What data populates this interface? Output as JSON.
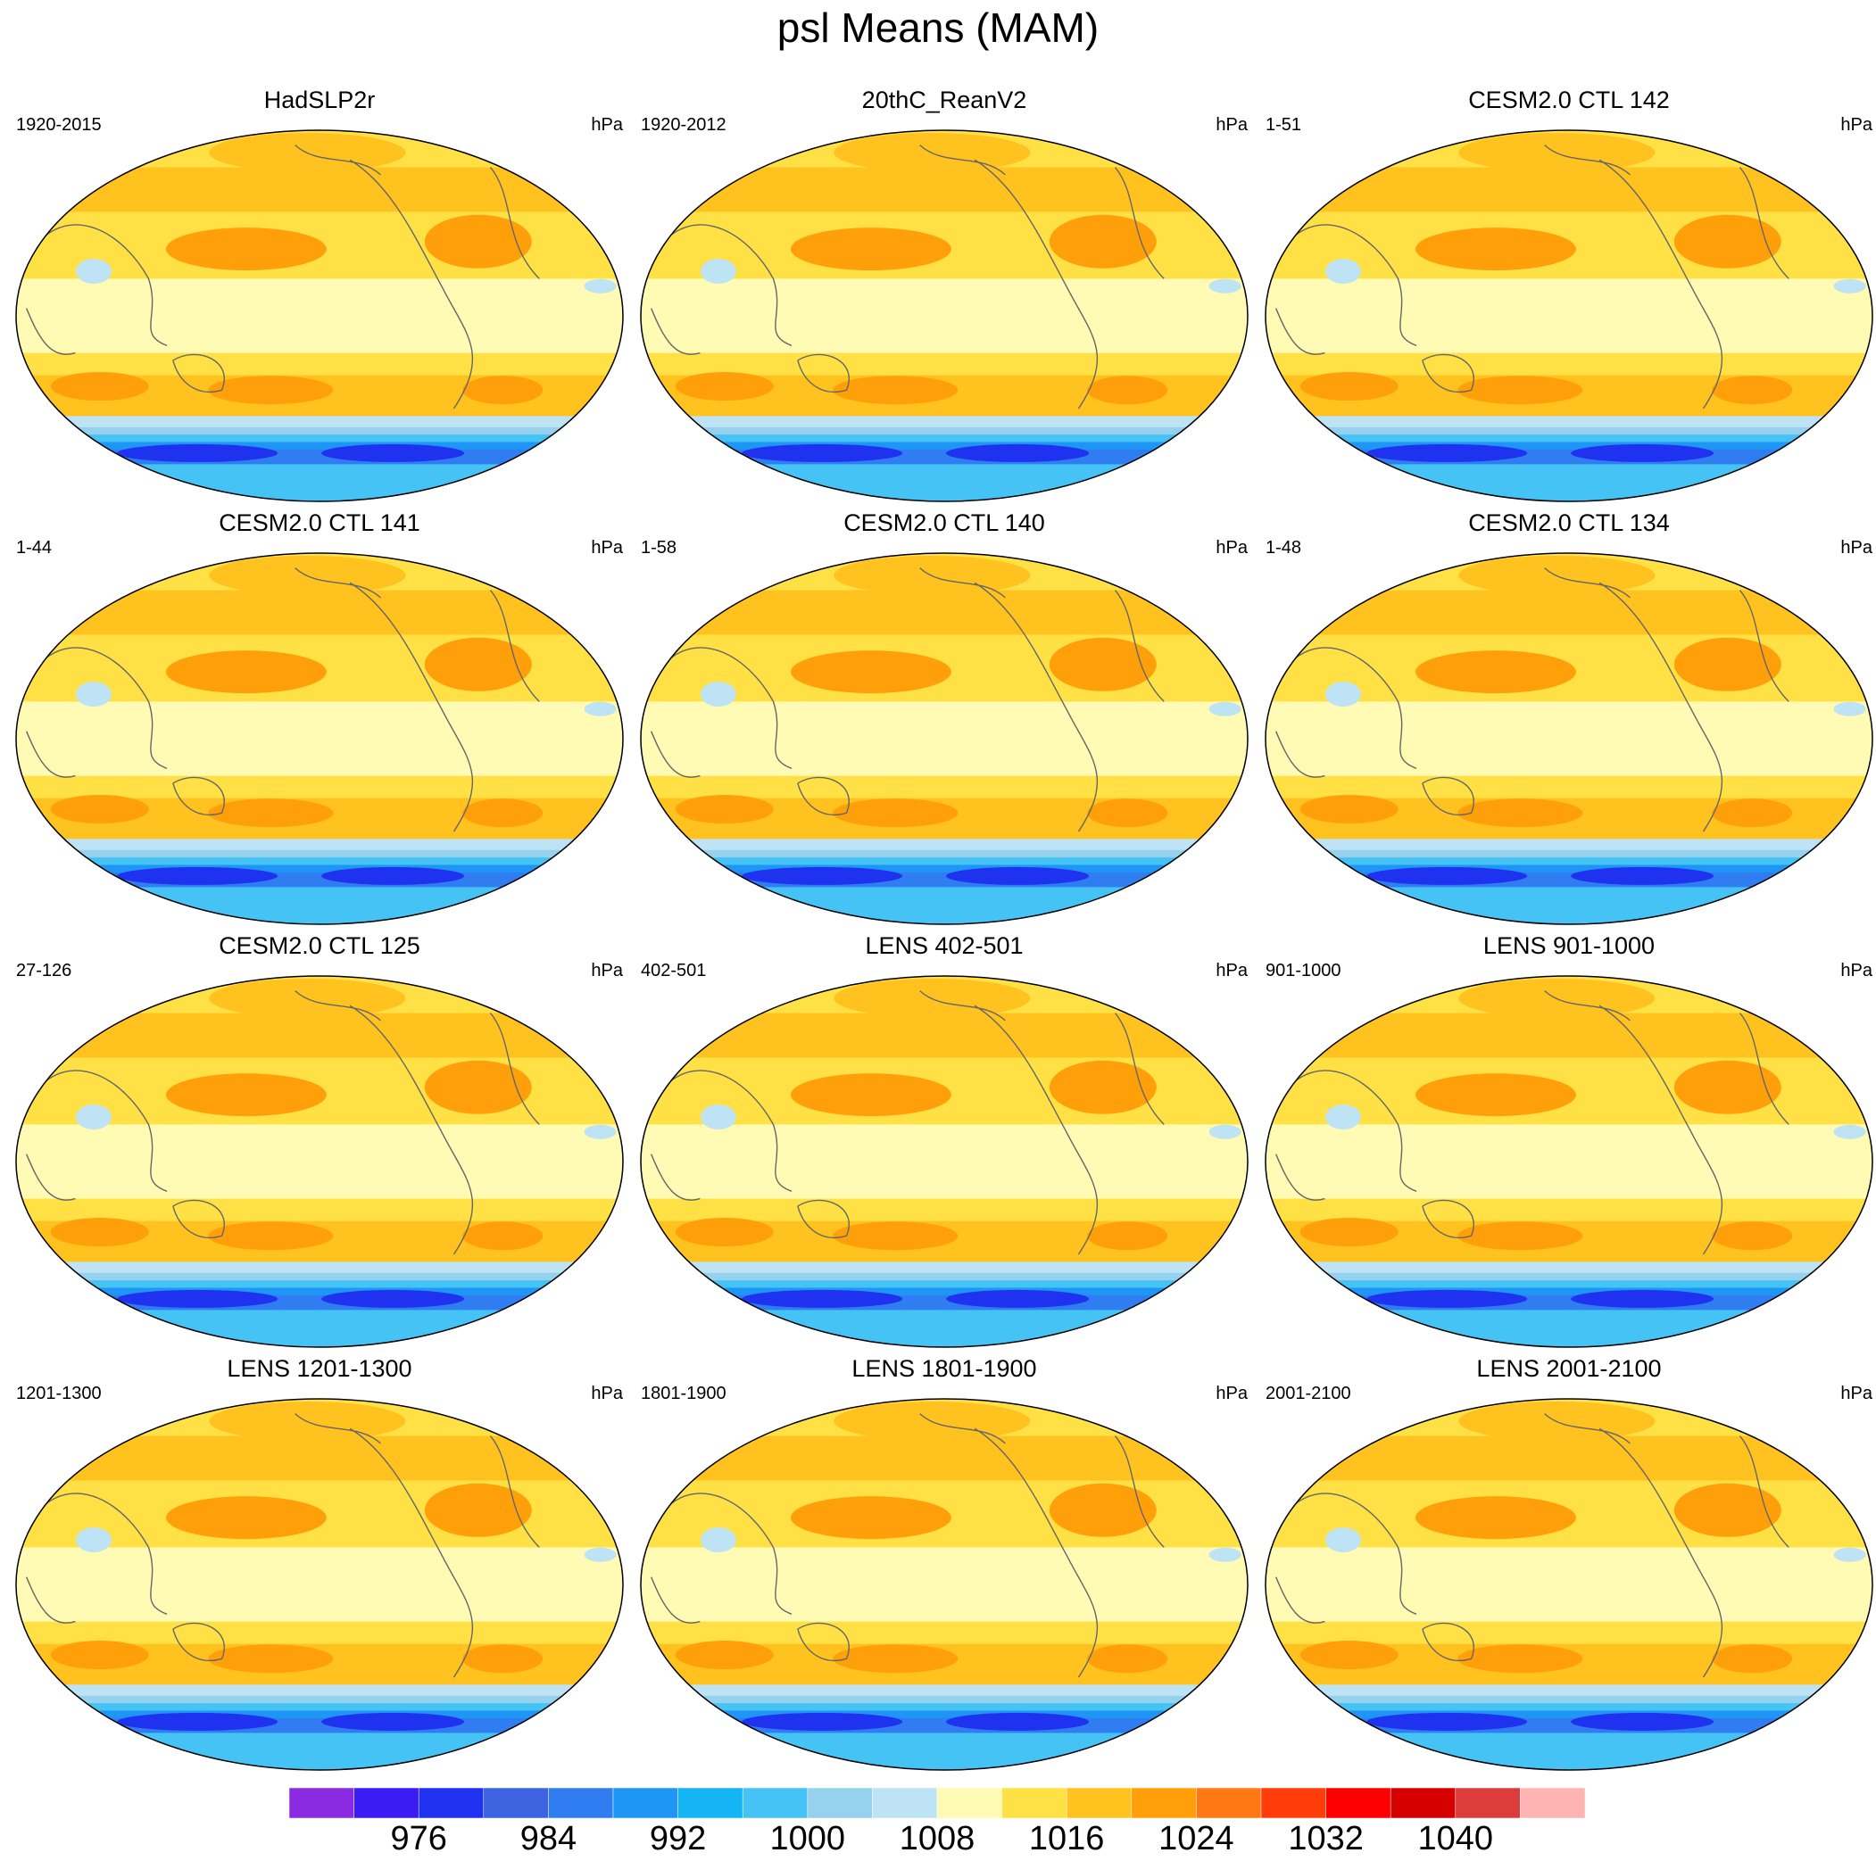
{
  "title": "psl Means (MAM)",
  "units": "hPa",
  "panels": [
    {
      "title": "HadSLP2r",
      "period": "1920-2015",
      "units": "hPa"
    },
    {
      "title": "20thC_ReanV2",
      "period": "1920-2012",
      "units": "hPa"
    },
    {
      "title": "CESM2.0 CTL 142",
      "period": "1-51",
      "units": "hPa"
    },
    {
      "title": "CESM2.0 CTL 141",
      "period": "1-44",
      "units": "hPa"
    },
    {
      "title": "CESM2.0 CTL 140",
      "period": "1-58",
      "units": "hPa"
    },
    {
      "title": "CESM2.0 CTL 134",
      "period": "1-48",
      "units": "hPa"
    },
    {
      "title": "CESM2.0 CTL 125",
      "period": "27-126",
      "units": "hPa"
    },
    {
      "title": "LENS 402-501",
      "period": "402-501",
      "units": "hPa"
    },
    {
      "title": "LENS 901-1000",
      "period": "901-1000",
      "units": "hPa"
    },
    {
      "title": "LENS 1201-1300",
      "period": "1201-1300",
      "units": "hPa"
    },
    {
      "title": "LENS 1801-1900",
      "period": "1801-1900",
      "units": "hPa"
    },
    {
      "title": "LENS 2001-2100",
      "period": "2001-2100",
      "units": "hPa"
    }
  ],
  "colorbar": {
    "colors": [
      "#8a2be2",
      "#3b1cf5",
      "#1e32f0",
      "#3d63e0",
      "#2f7df0",
      "#1e96f5",
      "#14b4f5",
      "#46c3f5",
      "#96d2ee",
      "#bde3f5",
      "#fffab4",
      "#ffe146",
      "#ffc21e",
      "#ffa00a",
      "#ff7814",
      "#ff3c0a",
      "#ff0000",
      "#d70000",
      "#dc3c3c",
      "#ffb4b4"
    ],
    "labels": [
      "976",
      "984",
      "992",
      "1000",
      "1008",
      "1016",
      "1024",
      "1032",
      "1040"
    ]
  }
}
